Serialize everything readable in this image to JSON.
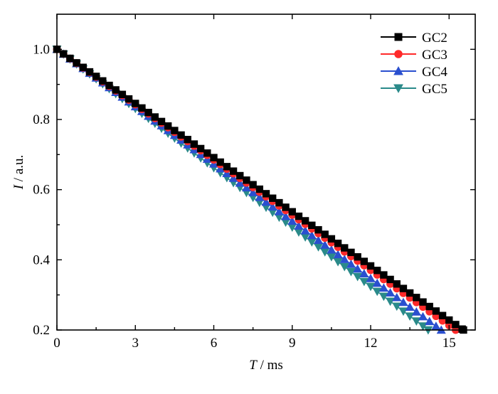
{
  "chart_data": {
    "type": "line",
    "title": "",
    "xlabel": {
      "symbol": "T",
      "unit": " / ms"
    },
    "ylabel": {
      "symbol": "I",
      "unit": " / a.u."
    },
    "xlim": [
      0,
      16
    ],
    "ylim": [
      0.2,
      1.1
    ],
    "xticks": [
      "0",
      "3",
      "6",
      "9",
      "12",
      "15"
    ],
    "yticks": [
      "0.2",
      "0.4",
      "0.6",
      "0.8",
      "1.0"
    ],
    "legend_position": "top-right",
    "grid": false,
    "series": [
      {
        "name": "GC2",
        "color": "#000000",
        "marker": "square",
        "x_start": 0,
        "x_end": 15.55,
        "x_step": 0.25,
        "y_start": 1.0,
        "y_end": 0.2
      },
      {
        "name": "GC3",
        "color": "#ff2a2a",
        "marker": "circle",
        "x_start": 0,
        "x_end": 15.25,
        "x_step": 0.25,
        "y_start": 1.0,
        "y_end": 0.2
      },
      {
        "name": "GC4",
        "color": "#2a4fcf",
        "marker": "triangle-up",
        "x_start": 0,
        "x_end": 14.7,
        "x_step": 0.25,
        "y_start": 1.0,
        "y_end": 0.2
      },
      {
        "name": "GC5",
        "color": "#2a8a8a",
        "marker": "triangle-down",
        "x_start": 0,
        "x_end": 14.2,
        "x_step": 0.25,
        "y_start": 1.0,
        "y_end": 0.2
      }
    ]
  }
}
